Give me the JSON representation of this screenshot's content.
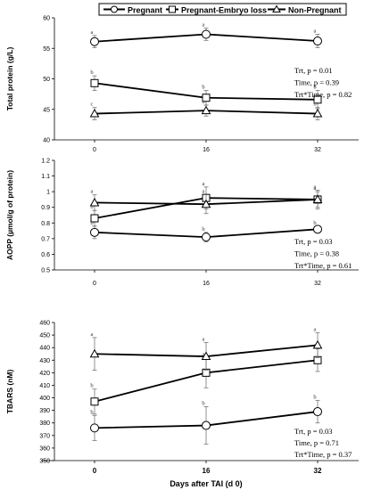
{
  "legend": {
    "entries": [
      {
        "label": "Pregnant",
        "marker": "circle"
      },
      {
        "label": "Pregnant-Embryo loss",
        "marker": "square"
      },
      {
        "label": "Non-Pregnant",
        "marker": "triangle"
      }
    ]
  },
  "chart_data": [
    {
      "type": "line",
      "ylabel": "Total protein (g/L)",
      "xlabel": "",
      "ylim": [
        40,
        60
      ],
      "y_ticks": [
        40,
        45,
        50,
        55,
        60
      ],
      "x_categories": [
        "0",
        "16",
        "32"
      ],
      "stats": {
        "line1": "Trt, p = 0.01",
        "line2": "Time, p = 0.39",
        "line3": "Trt*Time, p = 0.82"
      },
      "series": [
        {
          "name": "Pregnant",
          "marker": "circle",
          "values": [
            56.1,
            57.3,
            56.2
          ],
          "errors": [
            1.0,
            1.0,
            1.1
          ],
          "letters": [
            "a",
            "a",
            "a"
          ]
        },
        {
          "name": "Pregnant-Embryo loss",
          "marker": "square",
          "values": [
            49.3,
            46.9,
            46.6
          ],
          "errors": [
            1.2,
            1.2,
            1.5
          ],
          "letters": [
            "b",
            "b",
            "b"
          ]
        },
        {
          "name": "Non-Pregnant",
          "marker": "triangle",
          "values": [
            44.3,
            44.8,
            44.3
          ],
          "errors": [
            1.0,
            0.9,
            1.0
          ],
          "letters": [
            "c",
            "b",
            "b"
          ]
        }
      ]
    },
    {
      "type": "line",
      "ylabel": "AOPP (µmol/g of protein)",
      "xlabel": "",
      "ylim": [
        0.5,
        1.2
      ],
      "y_ticks": [
        "0.5",
        "0.6",
        "0.7",
        "0.8",
        "0.9",
        "1",
        "1.1",
        "1.2"
      ],
      "x_categories": [
        "0",
        "16",
        "32"
      ],
      "stats": {
        "line1": "Trt, p = 0.03",
        "line2": "Time, p = 0.38",
        "line3": "Trt*Time, p = 0.61"
      },
      "series": [
        {
          "name": "Pregnant",
          "marker": "circle",
          "values": [
            0.74,
            0.71,
            0.76
          ],
          "errors": [
            0.04,
            0.03,
            0.02
          ],
          "letters": [
            "b",
            "b",
            "b"
          ]
        },
        {
          "name": "Pregnant-Embryo loss",
          "marker": "square",
          "values": [
            0.83,
            0.96,
            0.95
          ],
          "errors": [
            0.05,
            0.07,
            0.06
          ],
          "letters": [
            "b",
            "a",
            "a"
          ]
        },
        {
          "name": "Non-Pregnant",
          "marker": "triangle",
          "values": [
            0.93,
            0.92,
            0.95
          ],
          "errors": [
            0.05,
            0.06,
            0.05
          ],
          "letters": [
            "a",
            "a",
            "a"
          ]
        }
      ]
    },
    {
      "type": "line",
      "ylabel": "TBARS (nM)",
      "xlabel": "Days after TAI (d 0)",
      "ylim": [
        350,
        460
      ],
      "y_ticks": [
        350,
        360,
        370,
        380,
        390,
        400,
        410,
        420,
        430,
        440,
        450,
        460
      ],
      "x_categories": [
        "0",
        "16",
        "32"
      ],
      "stats": {
        "line1": "Trt, p = 0.03",
        "line2": "Time, p = 0.71",
        "line3": "Trt*Time, p = 0.37"
      },
      "series": [
        {
          "name": "Pregnant",
          "marker": "circle",
          "values": [
            376,
            378,
            389
          ],
          "errors": [
            10,
            15,
            9
          ],
          "letters": [
            "b",
            "b",
            "b"
          ]
        },
        {
          "name": "Pregnant-Embryo loss",
          "marker": "square",
          "values": [
            397,
            420,
            430
          ],
          "errors": [
            10,
            12,
            9
          ],
          "letters": [
            "b",
            "a",
            "a"
          ]
        },
        {
          "name": "Non-Pregnant",
          "marker": "triangle",
          "values": [
            435,
            433,
            442
          ],
          "errors": [
            13,
            11,
            10
          ],
          "letters": [
            "a",
            "a",
            "a"
          ]
        }
      ]
    }
  ]
}
